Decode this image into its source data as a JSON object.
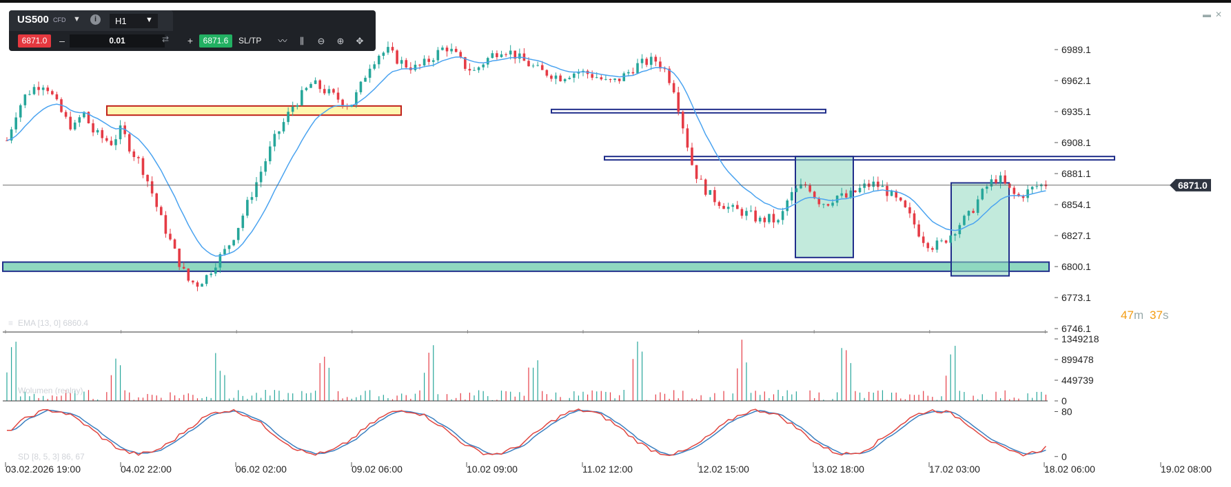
{
  "toolbar": {
    "symbol": "US500",
    "symbol_type": "CFD",
    "timeframe": "H1",
    "sell_price": "6871.0",
    "buy_price": "6871.6",
    "quantity": "0.01",
    "minus_label": "–",
    "plus_label": "+",
    "sltp_label": "SL/TP",
    "icons": [
      "line-chart-icon",
      "candles-icon",
      "zoom-out-icon",
      "zoom-in-icon",
      "crosshair-icon"
    ]
  },
  "window_controls": {
    "minimize": "▬",
    "close": "✕"
  },
  "colors": {
    "bull": "#26a69a",
    "bear": "#e53b45",
    "ema": "#4aa3f0",
    "stoch_k": "#e0453f",
    "stoch_d": "#3a7fc0",
    "price_tag": "#2e3440",
    "zone_fill": "#8fd8c0",
    "zone_stroke": "#1f2d8a",
    "yellow_fill": "#fff7b0",
    "yellow_stroke": "#c0201a",
    "countdown": "#f39c12"
  },
  "chart_data": {
    "type": "candlestick",
    "symbol": "US500",
    "timeframe": "H1",
    "current_price": "6871.0",
    "y_ticks": [
      "6989.1",
      "6962.1",
      "6935.1",
      "6908.1",
      "6881.1",
      "6854.1",
      "6827.1",
      "6800.1",
      "6773.1",
      "6746.1"
    ],
    "ylim": [
      6746.1,
      6989.1
    ],
    "x_ticks": [
      "03.02.2026 19:00",
      "04.02 22:00",
      "06.02 02:00",
      "09.02 06:00",
      "10.02 09:00",
      "11.02 12:00",
      "12.02 15:00",
      "13.02 18:00",
      "17.02 03:00",
      "18.02 06:00",
      "19.02 08:00"
    ],
    "ema_label": "EMA [13, 0] 6860.4",
    "countdown": {
      "minutes": "47",
      "m": "m",
      "seconds": "37",
      "s": "s"
    },
    "close_path": [
      6910,
      6935,
      6950,
      6957,
      6960,
      6945,
      6930,
      6920,
      6935,
      6918,
      6912,
      6908,
      6920,
      6902,
      6890,
      6870,
      6845,
      6825,
      6805,
      6788,
      6785,
      6792,
      6805,
      6815,
      6830,
      6850,
      6870,
      6890,
      6910,
      6925,
      6940,
      6950,
      6960,
      6955,
      6950,
      6945,
      6940,
      6955,
      6975,
      6985,
      6988,
      6980,
      6975,
      6973,
      6978,
      6985,
      6992,
      6985,
      6975,
      6970,
      6978,
      6985,
      6990,
      6986,
      6980,
      6975,
      6970,
      6968,
      6965,
      6968,
      6970,
      6968,
      6965,
      6960,
      6962,
      6968,
      6975,
      6978,
      6980,
      6972,
      6955,
      6920,
      6885,
      6870,
      6860,
      6855,
      6850,
      6848,
      6845,
      6840,
      6842,
      6838,
      6860,
      6868,
      6872,
      6858,
      6855,
      6862,
      6860,
      6865,
      6870,
      6872,
      6868,
      6860,
      6852,
      6840,
      6825,
      6818,
      6820,
      6828,
      6838,
      6845,
      6860,
      6872,
      6878,
      6868,
      6860,
      6865,
      6870,
      6872
    ],
    "volume": {
      "ticks": [
        "1349218",
        "899478",
        "449739",
        "0"
      ],
      "max": 1349218,
      "label": "Wolumen (realny)"
    },
    "stochastic": {
      "ticks": [
        "80",
        "0"
      ],
      "label": "SD [8, 5, 3] 86, 67"
    },
    "zones": {
      "yellow": {
        "from": 6932,
        "to": 6940
      },
      "support": {
        "from": 6796,
        "to": 6804
      },
      "line_a": {
        "from": 6934,
        "to": 6937
      },
      "line_b": {
        "from": 6893,
        "to": 6896
      },
      "box_a": {
        "from": 6808,
        "to": 6896
      },
      "box_b": {
        "from": 6792,
        "to": 6873
      }
    }
  }
}
